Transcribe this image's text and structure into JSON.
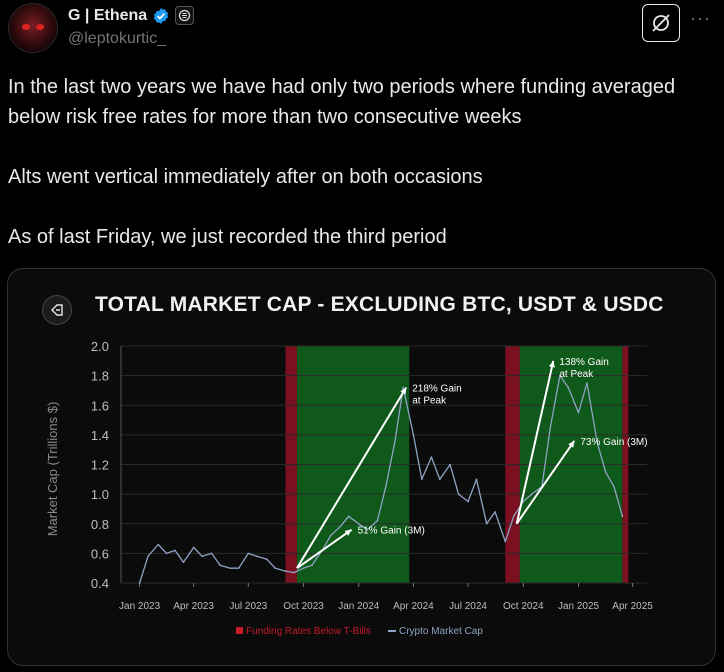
{
  "author": {
    "name": "G | Ethena",
    "handle": "@leptokurtic_"
  },
  "icons": {
    "verified": "verified-badge-icon",
    "affiliate": "affiliate-logo-icon",
    "grok": "grok-icon",
    "more": "more-options-icon"
  },
  "more_label": "···",
  "tweet": {
    "paragraphs": [
      "In the last two years we have had only two periods where funding averaged below risk free rates for more than two consecutive weeks",
      "Alts went vertical immediately after on both occasions",
      "As of last Friday, we just recorded the third period"
    ]
  },
  "colors": {
    "accent_blue": "#1d9bf0",
    "line": "#8fa3c4",
    "red_band": "#7a1020",
    "green_band": "#0f5a1a"
  },
  "chart_data": {
    "type": "line",
    "title": "TOTAL MARKET CAP - EXCLUDING BTC, USDT & USDC",
    "ylabel": "Market Cap (Trillions $)",
    "xlabel": "",
    "ylim": [
      0.4,
      2.0
    ],
    "y_ticks": [
      "2.0",
      "1.8",
      "1.6",
      "1.4",
      "1.2",
      "1.0",
      "0.8",
      "0.6",
      "0.4"
    ],
    "x_ticks": [
      "Jan 2023",
      "Apr 2023",
      "Jul 2023",
      "Oct 2023",
      "Jan 2024",
      "Apr 2024",
      "Jul 2024",
      "Oct 2024",
      "Jan 2025",
      "Apr 2025"
    ],
    "legend": [
      {
        "label": "Funding Rates Below T-Bills",
        "color": "#c41a2a",
        "marker": "square"
      },
      {
        "label": "Crypto Market Cap",
        "color": "#8fa3c4",
        "marker": "line"
      }
    ],
    "legend_position": "bottom",
    "grid": true,
    "red_periods": [
      [
        "2023-09-01",
        "2023-09-20"
      ],
      [
        "2024-09-01",
        "2024-09-25"
      ],
      [
        "2025-03-15",
        "2025-03-25"
      ]
    ],
    "green_periods": [
      [
        "2023-09-20",
        "2024-03-25"
      ],
      [
        "2024-09-25",
        "2025-03-15"
      ]
    ],
    "series": [
      {
        "name": "Crypto Market Cap",
        "x": [
          "2023-01-01",
          "2023-01-15",
          "2023-02-01",
          "2023-02-15",
          "2023-03-01",
          "2023-03-15",
          "2023-04-01",
          "2023-04-15",
          "2023-05-01",
          "2023-05-15",
          "2023-06-01",
          "2023-06-15",
          "2023-07-01",
          "2023-07-15",
          "2023-08-01",
          "2023-08-15",
          "2023-09-01",
          "2023-09-15",
          "2023-10-01",
          "2023-10-15",
          "2023-11-01",
          "2023-11-15",
          "2023-12-01",
          "2023-12-15",
          "2024-01-01",
          "2024-01-15",
          "2024-02-01",
          "2024-02-15",
          "2024-03-01",
          "2024-03-15",
          "2024-04-01",
          "2024-04-15",
          "2024-05-01",
          "2024-05-15",
          "2024-06-01",
          "2024-06-15",
          "2024-07-01",
          "2024-07-15",
          "2024-08-01",
          "2024-08-15",
          "2024-09-01",
          "2024-09-15",
          "2024-10-01",
          "2024-10-15",
          "2024-11-01",
          "2024-11-15",
          "2024-12-01",
          "2024-12-15",
          "2025-01-01",
          "2025-01-15",
          "2025-02-01",
          "2025-02-15",
          "2025-03-01",
          "2025-03-15"
        ],
        "values": [
          0.4,
          0.58,
          0.66,
          0.6,
          0.62,
          0.54,
          0.64,
          0.58,
          0.6,
          0.52,
          0.5,
          0.5,
          0.6,
          0.58,
          0.56,
          0.5,
          0.48,
          0.47,
          0.5,
          0.52,
          0.62,
          0.72,
          0.78,
          0.85,
          0.8,
          0.76,
          0.82,
          1.05,
          1.35,
          1.72,
          1.4,
          1.1,
          1.25,
          1.1,
          1.2,
          1.0,
          0.95,
          1.1,
          0.8,
          0.88,
          0.68,
          0.85,
          0.95,
          1.0,
          1.05,
          1.45,
          1.8,
          1.72,
          1.55,
          1.75,
          1.35,
          1.15,
          1.05,
          0.85
        ]
      }
    ],
    "annotations": [
      {
        "text": [
          "51% Gain (3M)"
        ],
        "from": [
          "2023-09-20",
          0.5
        ],
        "to": [
          "2023-12-20",
          0.76
        ]
      },
      {
        "text": [
          "218% Gain",
          "at Peak"
        ],
        "from": [
          "2023-09-20",
          0.5
        ],
        "to": [
          "2024-03-20",
          1.72
        ]
      },
      {
        "text": [
          "73% Gain (3M)"
        ],
        "from": [
          "2024-09-20",
          0.8
        ],
        "to": [
          "2024-12-25",
          1.36
        ]
      },
      {
        "text": [
          "138% Gain",
          "at Peak"
        ],
        "from": [
          "2024-09-20",
          0.8
        ],
        "to": [
          "2024-11-20",
          1.9
        ]
      }
    ]
  }
}
